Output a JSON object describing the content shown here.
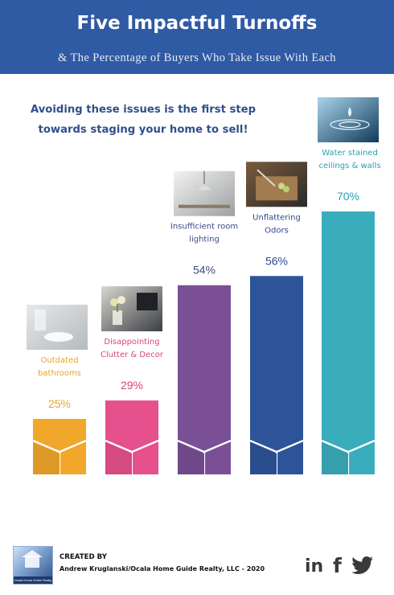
{
  "header": {
    "title": "Five Impactful Turnoffs",
    "subtitle": "& The Percentage of Buyers Who Take Issue With Each"
  },
  "tagline": {
    "line1": "Avoiding these issues is the first step",
    "line2": "towards staging your home to sell!"
  },
  "chart_data": {
    "type": "bar",
    "categories": [
      "Outdated bathrooms",
      "Disappointing Clutter & Decor",
      "Insufficient room lighting",
      "Unflattering Odors",
      "Water stained ceilings & walls"
    ],
    "category_lines": [
      [
        "Outdated",
        "bathrooms"
      ],
      [
        "Disappointing",
        "Clutter & Decor"
      ],
      [
        "Insufficient room",
        "lighting"
      ],
      [
        "Unflattering",
        "Odors"
      ],
      [
        "Water stained",
        "ceilings & walls"
      ]
    ],
    "values": [
      25,
      29,
      54,
      56,
      70
    ],
    "data_labels": [
      "25%",
      "29%",
      "54%",
      "56%",
      "70%"
    ],
    "unit": "%",
    "colors": [
      "#f0a72a",
      "#e6508c",
      "#7a4f96",
      "#2d5499",
      "#3aadbc"
    ],
    "label_colors": [
      "#e9a227",
      "#d9437f",
      "#3d4a86",
      "#2d4a8a",
      "#2a9fb0"
    ],
    "photos": [
      "bathroom-photo",
      "tulips-decor-photo",
      "pendant-lamp-photo",
      "cutting-board-photo",
      "water-drop-photo"
    ],
    "ylim": [
      0,
      70
    ]
  },
  "footer": {
    "logo_text": "Ocala Home Guide Realty",
    "credit_label": "CREATED BY",
    "credit_text": "Andrew Kruglanski/Ocala Home Guide Realty, LLC - 2020",
    "social": [
      "linkedin-icon",
      "facebook-icon",
      "twitter-icon"
    ],
    "linkedin_text": "in",
    "facebook_text": "f"
  }
}
